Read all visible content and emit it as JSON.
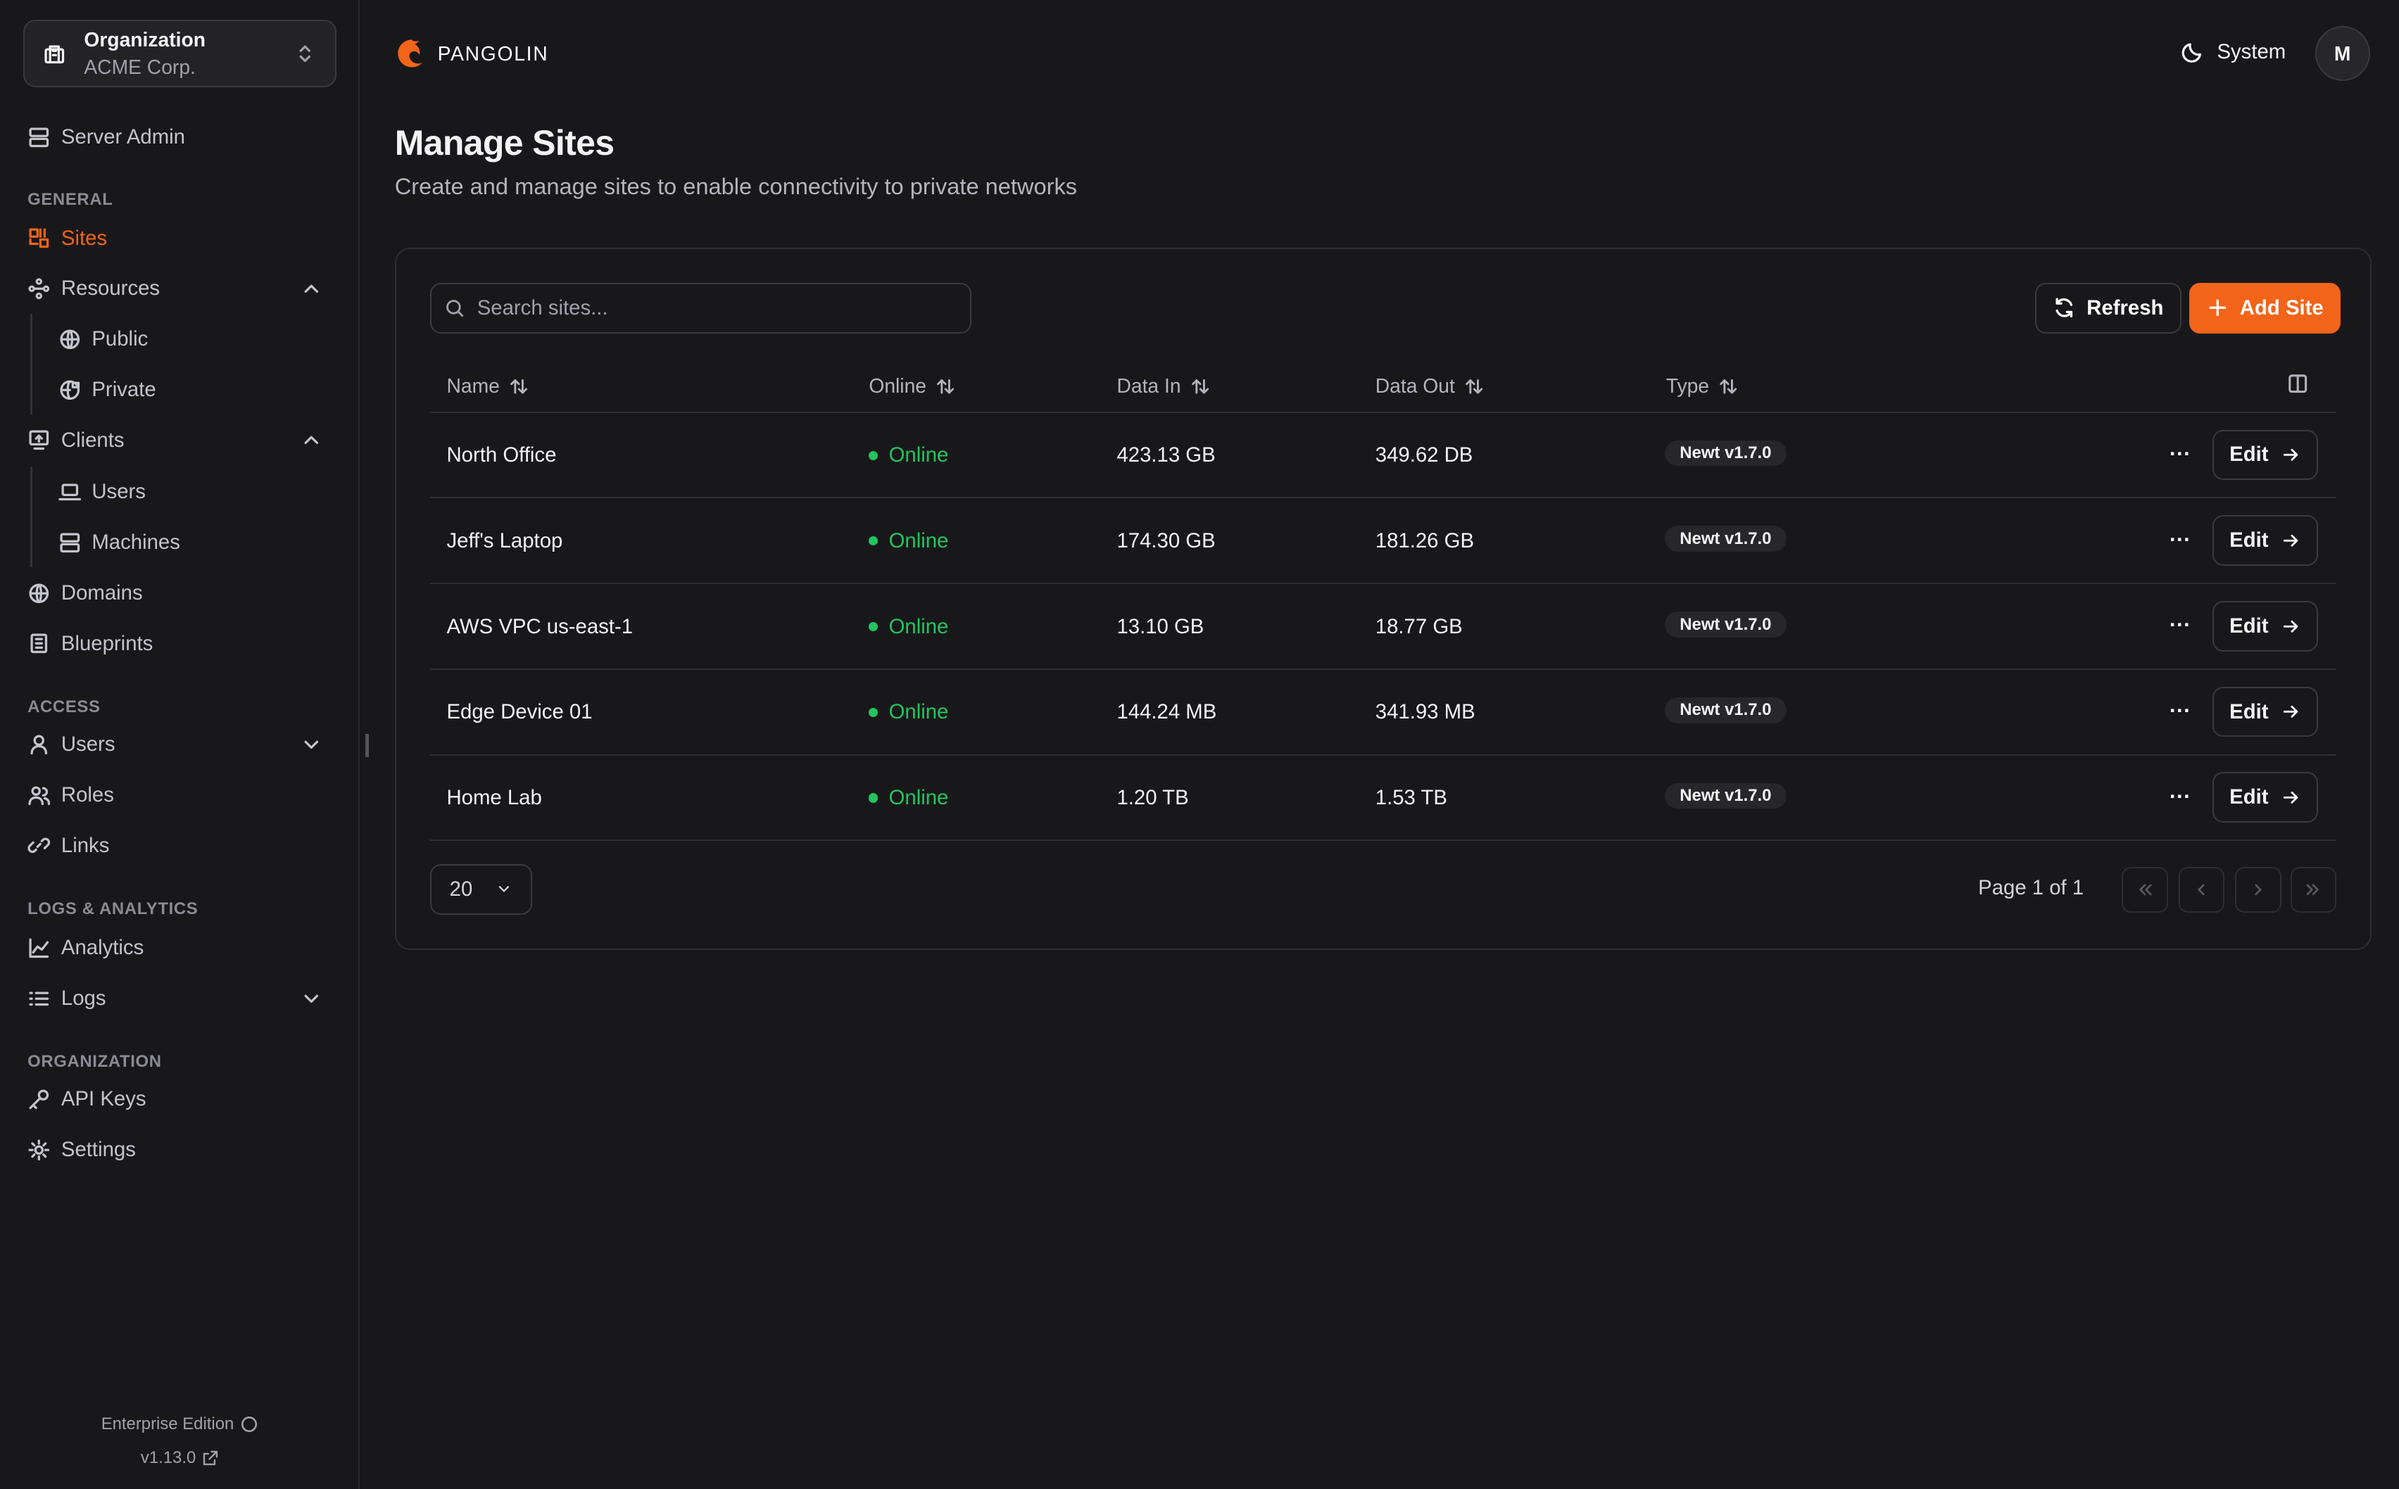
{
  "org": {
    "label": "Organization",
    "name": "ACME Corp."
  },
  "sidebar": {
    "server_admin": "Server Admin",
    "sections": {
      "general": "GENERAL",
      "access": "ACCESS",
      "logs": "LOGS & ANALYTICS",
      "organization": "ORGANIZATION"
    },
    "items": {
      "sites": "Sites",
      "resources": "Resources",
      "public": "Public",
      "private": "Private",
      "clients": "Clients",
      "users_client": "Users",
      "machines": "Machines",
      "domains": "Domains",
      "blueprints": "Blueprints",
      "users": "Users",
      "roles": "Roles",
      "links": "Links",
      "analytics": "Analytics",
      "logs": "Logs",
      "api_keys": "API Keys",
      "settings": "Settings"
    },
    "active": "Sites",
    "edition": "Enterprise Edition",
    "version": "v1.13.0"
  },
  "header": {
    "brand": "PANGOLIN",
    "theme": "System",
    "avatar": "M"
  },
  "page": {
    "title": "Manage Sites",
    "subtitle": "Create and manage sites to enable connectivity to private networks"
  },
  "toolbar": {
    "search_placeholder": "Search sites...",
    "refresh": "Refresh",
    "add": "Add Site"
  },
  "table": {
    "columns": [
      "Name",
      "Online",
      "Data In",
      "Data Out",
      "Type"
    ],
    "rows": [
      {
        "name": "North Office",
        "online": "Online",
        "data_in": "423.13 GB",
        "data_out": "349.62 DB",
        "type": "Newt v1.7.0",
        "action": "Edit"
      },
      {
        "name": "Jeff's Laptop",
        "online": "Online",
        "data_in": "174.30 GB",
        "data_out": "181.26 GB",
        "type": "Newt v1.7.0",
        "action": "Edit"
      },
      {
        "name": "AWS VPC us-east-1",
        "online": "Online",
        "data_in": "13.10 GB",
        "data_out": "18.77 GB",
        "type": "Newt v1.7.0",
        "action": "Edit"
      },
      {
        "name": "Edge Device 01",
        "online": "Online",
        "data_in": "144.24 MB",
        "data_out": "341.93 MB",
        "type": "Newt v1.7.0",
        "action": "Edit"
      },
      {
        "name": "Home Lab",
        "online": "Online",
        "data_in": "1.20 TB",
        "data_out": "1.53 TB",
        "type": "Newt v1.7.0",
        "action": "Edit"
      }
    ]
  },
  "pagination": {
    "page_size": "20",
    "info": "Page 1 of 1"
  },
  "colors": {
    "accent": "#f26419",
    "online": "#22c55e",
    "background": "#18181b"
  }
}
